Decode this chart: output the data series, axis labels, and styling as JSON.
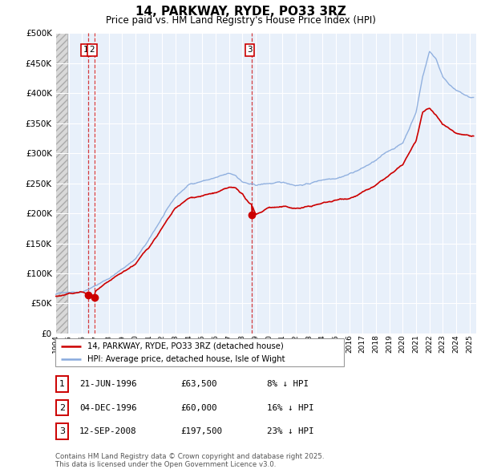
{
  "title": "14, PARKWAY, RYDE, PO33 3RZ",
  "subtitle": "Price paid vs. HM Land Registry's House Price Index (HPI)",
  "legend_line1": "14, PARKWAY, RYDE, PO33 3RZ (detached house)",
  "legend_line2": "HPI: Average price, detached house, Isle of Wight",
  "footnote": "Contains HM Land Registry data © Crown copyright and database right 2025.\nThis data is licensed under the Open Government Licence v3.0.",
  "price_color": "#cc0000",
  "hpi_color": "#88aadd",
  "background_chart": "#e8f0fa",
  "ylim": [
    0,
    500000
  ],
  "yticks": [
    0,
    50000,
    100000,
    150000,
    200000,
    250000,
    300000,
    350000,
    400000,
    450000,
    500000
  ],
  "sale_points": [
    {
      "date_num": 1996.47,
      "price": 63500,
      "label": "1"
    },
    {
      "date_num": 1996.92,
      "price": 60000,
      "label": "2"
    },
    {
      "date_num": 2008.71,
      "price": 197500,
      "label": "3"
    }
  ],
  "table_rows": [
    {
      "num": "1",
      "date": "21-JUN-1996",
      "price": "£63,500",
      "hpi": "8% ↓ HPI"
    },
    {
      "num": "2",
      "date": "04-DEC-1996",
      "price": "£60,000",
      "hpi": "16% ↓ HPI"
    },
    {
      "num": "3",
      "date": "12-SEP-2008",
      "price": "£197,500",
      "hpi": "23% ↓ HPI"
    }
  ],
  "hpi_curve": {
    "x": [
      1994,
      1995,
      1996,
      1997,
      1998,
      1999,
      2000,
      2001,
      2002,
      2003,
      2004,
      2005,
      2006,
      2007,
      2007.5,
      2008,
      2008.5,
      2009,
      2010,
      2011,
      2012,
      2013,
      2014,
      2015,
      2016,
      2017,
      2018,
      2019,
      2020,
      2021,
      2021.5,
      2022,
      2022.5,
      2023,
      2024,
      2025
    ],
    "y": [
      65000,
      70000,
      72000,
      82000,
      95000,
      110000,
      128000,
      158000,
      195000,
      228000,
      248000,
      255000,
      260000,
      265000,
      262000,
      252000,
      248000,
      245000,
      248000,
      248000,
      245000,
      248000,
      255000,
      260000,
      268000,
      278000,
      290000,
      305000,
      318000,
      370000,
      430000,
      472000,
      460000,
      430000,
      408000,
      395000
    ]
  },
  "price_curve": {
    "x": [
      1994,
      1995,
      1996,
      1996.47,
      1996.92,
      1997,
      1998,
      1999,
      2000,
      2001,
      2002,
      2003,
      2004,
      2005,
      2006,
      2007,
      2007.5,
      2008,
      2008.5,
      2008.71,
      2009,
      2009.5,
      2010,
      2011,
      2012,
      2013,
      2014,
      2015,
      2016,
      2017,
      2018,
      2019,
      2020,
      2021,
      2021.5,
      2022,
      2022.5,
      2023,
      2024,
      2025
    ],
    "y": [
      62000,
      65000,
      68000,
      63500,
      60000,
      68000,
      80000,
      93000,
      108000,
      135000,
      168000,
      198000,
      213000,
      218000,
      222000,
      228000,
      226000,
      217000,
      200000,
      197500,
      182000,
      188000,
      195000,
      195000,
      192000,
      195000,
      200000,
      205000,
      210000,
      220000,
      230000,
      245000,
      260000,
      300000,
      345000,
      352000,
      338000,
      325000,
      310000,
      308000
    ]
  }
}
